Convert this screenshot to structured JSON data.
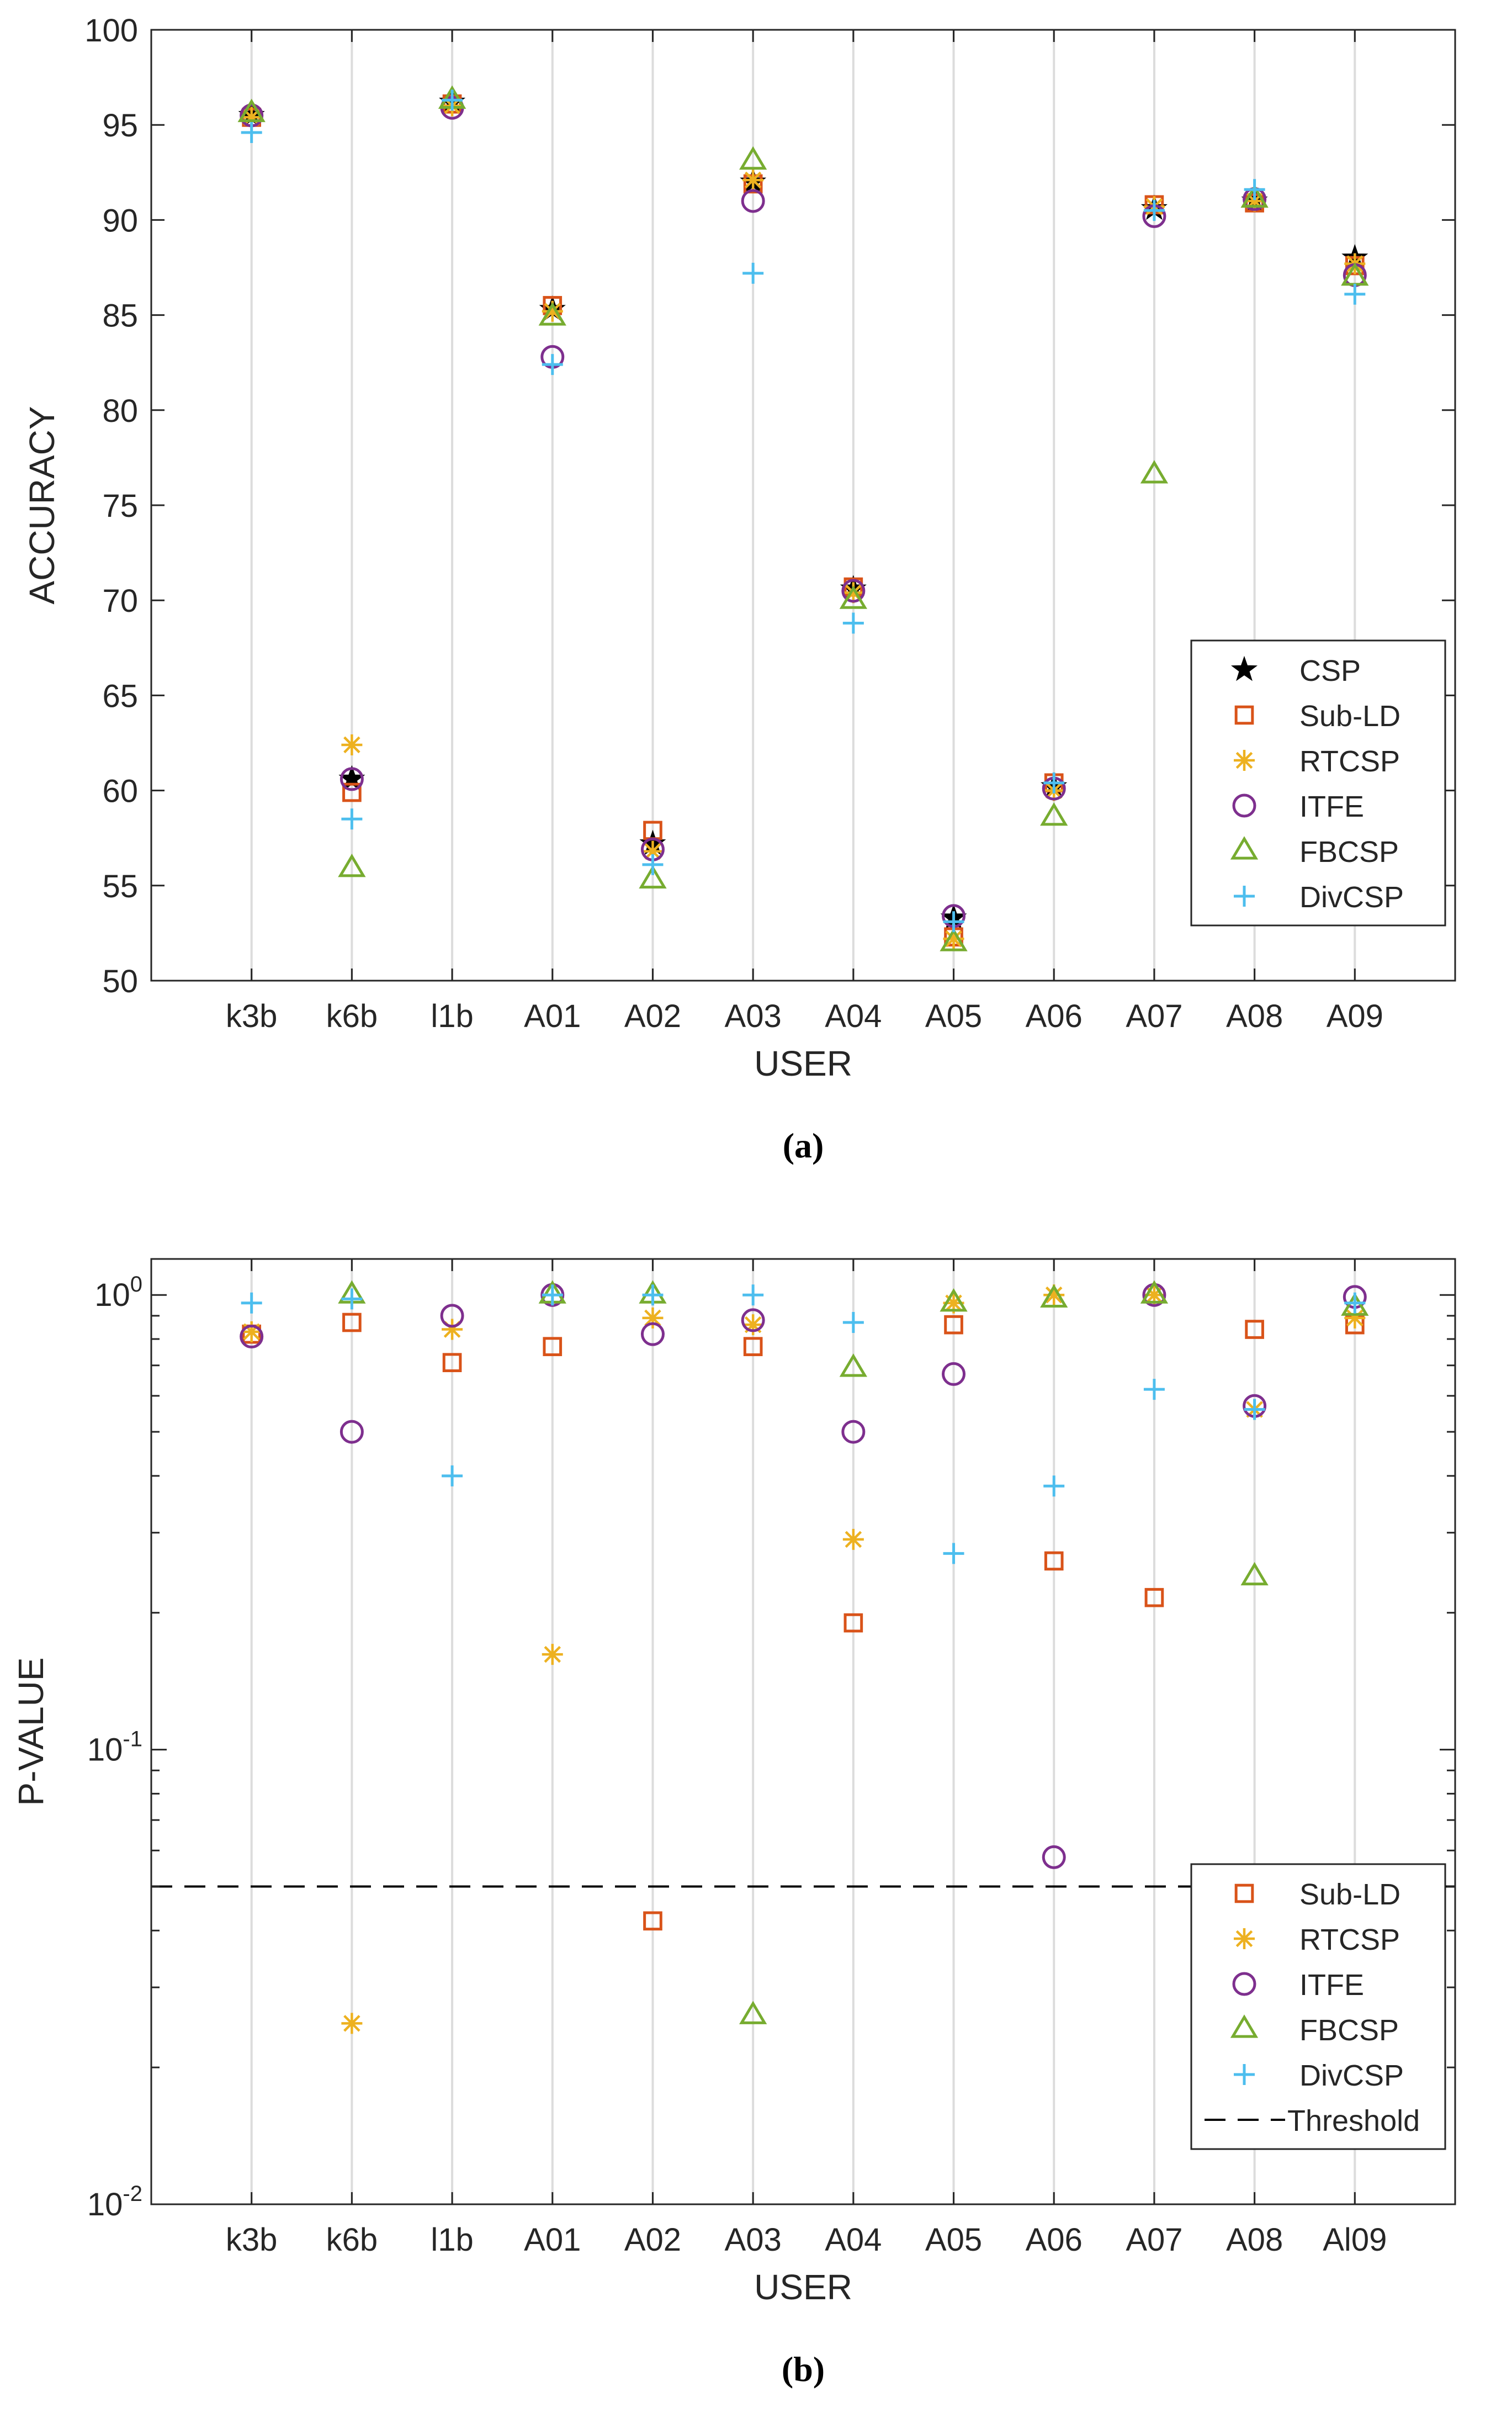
{
  "chart_data": [
    {
      "panel": "a",
      "type": "scatter",
      "caption": "(a)",
      "xlabel": "USER",
      "ylabel": "ACCURACY",
      "ylim": [
        50,
        100
      ],
      "yscale": "linear",
      "yticks": [
        "50",
        "55",
        "60",
        "65",
        "70",
        "75",
        "80",
        "85",
        "90",
        "95",
        "100"
      ],
      "grid": "vertical",
      "legend_position": "bottom-right",
      "categories": [
        "k3b",
        "k6b",
        "l1b",
        "A01",
        "A02",
        "A03",
        "A04",
        "A05",
        "A06",
        "A07",
        "A08",
        "A09"
      ],
      "series": [
        {
          "name": "CSP",
          "marker": "star",
          "color": "#000000",
          "values": [
            95.5,
            60.6,
            96.2,
            85.3,
            57.2,
            92.0,
            70.6,
            53.3,
            60.2,
            90.6,
            91.0,
            88.0
          ]
        },
        {
          "name": "Sub-LD",
          "marker": "square",
          "color": "#D95319",
          "values": [
            95.4,
            59.9,
            96.1,
            85.5,
            57.9,
            91.9,
            70.7,
            52.3,
            60.4,
            90.8,
            90.9,
            87.6
          ]
        },
        {
          "name": "RTCSP",
          "marker": "asterisk",
          "color": "#EDB120",
          "values": [
            95.4,
            62.4,
            96.0,
            85.2,
            56.8,
            92.1,
            70.4,
            52.2,
            60.0,
            90.7,
            91.0,
            87.7
          ]
        },
        {
          "name": "ITFE",
          "marker": "circle",
          "color": "#7E2F8E",
          "values": [
            95.5,
            60.6,
            95.9,
            82.8,
            56.9,
            91.0,
            70.5,
            53.4,
            60.1,
            90.2,
            91.1,
            87.1
          ]
        },
        {
          "name": "FBCSP",
          "marker": "triangle",
          "color": "#77AC30",
          "values": [
            95.6,
            55.9,
            96.3,
            84.9,
            55.3,
            93.1,
            70.0,
            52.0,
            58.6,
            76.6,
            91.1,
            87.0
          ]
        },
        {
          "name": "DivCSP",
          "marker": "plus",
          "color": "#4DBEEE",
          "values": [
            94.6,
            58.5,
            96.3,
            82.4,
            56.1,
            87.2,
            68.8,
            53.1,
            60.4,
            90.5,
            91.6,
            86.1
          ]
        }
      ]
    },
    {
      "panel": "b",
      "type": "scatter",
      "caption": "(b)",
      "xlabel": "USER",
      "ylabel": "P-VALUE",
      "ylim": [
        0.01,
        1.2
      ],
      "yscale": "log",
      "ytick_base": "10",
      "ytick_exponents": [
        "-2",
        "-1",
        "0"
      ],
      "grid": "vertical",
      "legend_position": "bottom-right",
      "categories": [
        "k3b",
        "k6b",
        "l1b",
        "A01",
        "A02",
        "A03",
        "A04",
        "A05",
        "A06",
        "A07",
        "A08",
        "Al09"
      ],
      "threshold": {
        "name": "Threshold",
        "value": 0.05,
        "color": "#000000"
      },
      "series": [
        {
          "name": "Sub-LD",
          "marker": "square",
          "color": "#D95319",
          "values": [
            0.82,
            0.87,
            0.71,
            0.77,
            0.042,
            0.77,
            0.19,
            0.86,
            0.26,
            0.216,
            0.84,
            0.86
          ]
        },
        {
          "name": "RTCSP",
          "marker": "asterisk",
          "color": "#EDB120",
          "values": [
            0.83,
            0.025,
            0.84,
            0.162,
            0.89,
            0.86,
            0.29,
            0.96,
            1.0,
            1.0,
            0.56,
            0.89
          ]
        },
        {
          "name": "ITFE",
          "marker": "circle",
          "color": "#7E2F8E",
          "values": [
            0.81,
            0.5,
            0.9,
            1.0,
            0.82,
            0.88,
            0.5,
            0.67,
            0.058,
            1.0,
            0.57,
            0.99
          ]
        },
        {
          "name": "FBCSP",
          "marker": "triangle",
          "color": "#77AC30",
          "values": [
            null,
            1.0,
            null,
            1.0,
            1.0,
            0.026,
            0.69,
            0.96,
            0.98,
            1.0,
            0.24,
            0.94
          ]
        },
        {
          "name": "DivCSP",
          "marker": "plus",
          "color": "#4DBEEE",
          "values": [
            0.96,
            0.98,
            0.4,
            1.0,
            1.0,
            1.0,
            0.87,
            0.27,
            0.38,
            0.62,
            0.56,
            0.96
          ]
        }
      ]
    }
  ]
}
